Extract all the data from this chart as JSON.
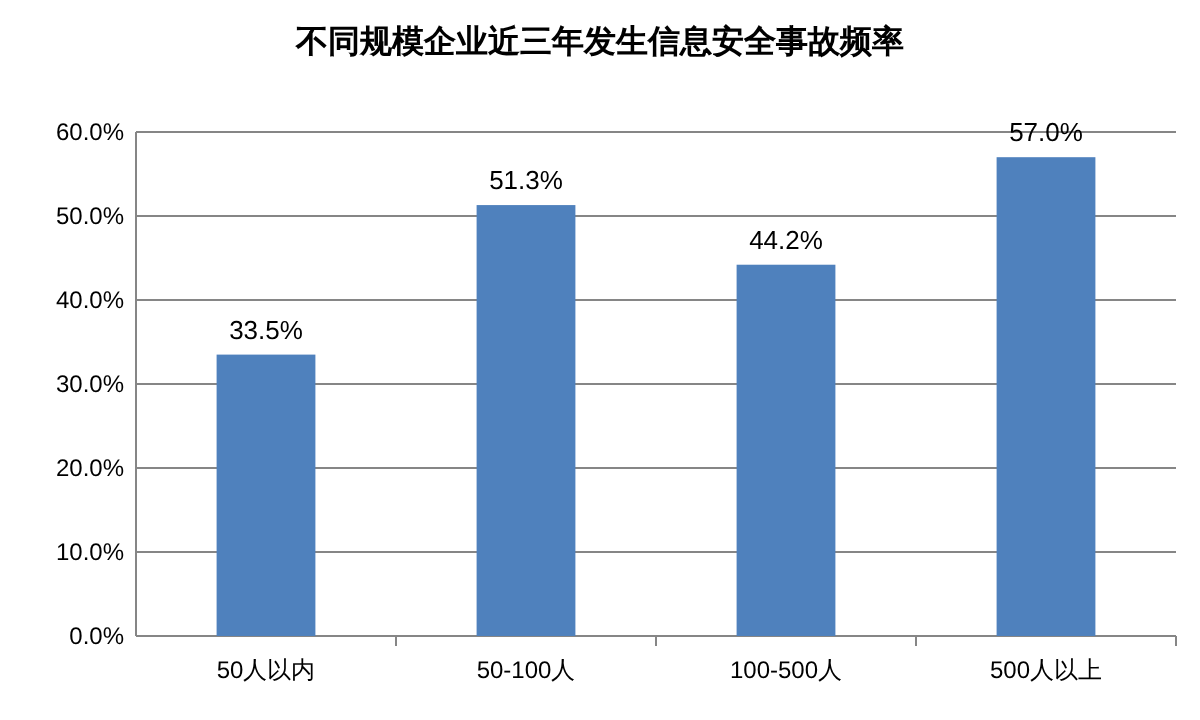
{
  "chart_data": {
    "type": "bar",
    "title": "不同规模企业近三年发生信息安全事故频率",
    "categories": [
      "50人以内",
      "50-100人",
      "100-500人",
      "500人以上"
    ],
    "values": [
      33.5,
      51.3,
      44.2,
      57.0
    ],
    "value_labels": [
      "33.5%",
      "51.3%",
      "44.2%",
      "57.0%"
    ],
    "color": "#4f81bd",
    "ylim": [
      0,
      60
    ],
    "yticks": [
      {
        "value": 0,
        "label": "0.0%"
      },
      {
        "value": 10,
        "label": "10.0%"
      },
      {
        "value": 20,
        "label": "20.0%"
      },
      {
        "value": 30,
        "label": "30.0%"
      },
      {
        "value": 40,
        "label": "40.0%"
      },
      {
        "value": 50,
        "label": "50.0%"
      },
      {
        "value": 60,
        "label": "60.0%"
      }
    ],
    "grid": "y"
  }
}
